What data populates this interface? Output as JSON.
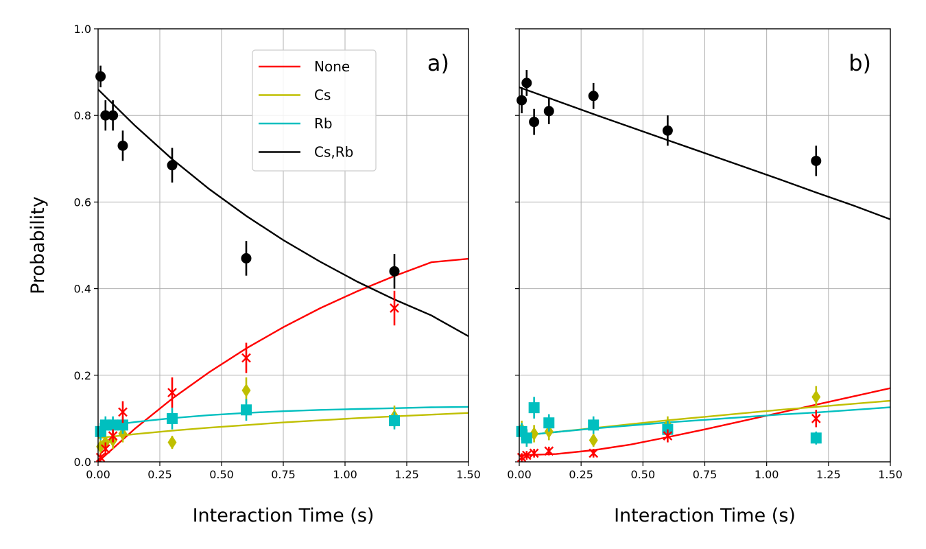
{
  "chart_data": [
    {
      "type": "scatter",
      "panel_label": "a)",
      "xlabel": "Interaction Time (s)",
      "ylabel": "Probability",
      "xlim": [
        0,
        1.5
      ],
      "ylim": [
        0,
        1.0
      ],
      "xticks": [
        0.0,
        0.25,
        0.5,
        0.75,
        1.0,
        1.25,
        1.5
      ],
      "xtick_labels": [
        "0.00",
        "0.25",
        "0.50",
        "0.75",
        "1.00",
        "1.25",
        "1.50"
      ],
      "yticks": [
        0.0,
        0.2,
        0.4,
        0.6,
        0.8,
        1.0
      ],
      "ytick_labels": [
        "0.0",
        "0.2",
        "0.4",
        "0.6",
        "0.8",
        "1.0"
      ],
      "grid": true,
      "legend": {
        "placement": "upper-center",
        "entries": [
          {
            "name": "None",
            "color": "#ff0000"
          },
          {
            "name": "Cs",
            "color": "#bfbf00"
          },
          {
            "name": "Rb",
            "color": "#00bfbf"
          },
          {
            "name": "Cs,Rb",
            "color": "#000000"
          }
        ]
      },
      "series": [
        {
          "name": "None",
          "color": "#ff0000",
          "marker": "x",
          "points": [
            {
              "x": 0.01,
              "y": 0.01,
              "err": 0.01
            },
            {
              "x": 0.03,
              "y": 0.03,
              "err": 0.015
            },
            {
              "x": 0.06,
              "y": 0.06,
              "err": 0.015
            },
            {
              "x": 0.1,
              "y": 0.115,
              "err": 0.025
            },
            {
              "x": 0.3,
              "y": 0.16,
              "err": 0.035
            },
            {
              "x": 0.6,
              "y": 0.24,
              "err": 0.035
            },
            {
              "x": 1.2,
              "y": 0.355,
              "err": 0.04
            }
          ],
          "fit": {
            "x": [
              0,
              0.15,
              0.3,
              0.45,
              0.6,
              0.75,
              0.9,
              1.05,
              1.2,
              1.35,
              1.5
            ],
            "y": [
              0.0,
              0.077,
              0.146,
              0.207,
              0.262,
              0.311,
              0.355,
              0.394,
              0.429,
              0.461,
              0.469
            ]
          }
        },
        {
          "name": "Cs",
          "color": "#bfbf00",
          "marker": "diamond",
          "points": [
            {
              "x": 0.01,
              "y": 0.035,
              "err": 0.02
            },
            {
              "x": 0.03,
              "y": 0.045,
              "err": 0.02
            },
            {
              "x": 0.06,
              "y": 0.05,
              "err": 0.02
            },
            {
              "x": 0.1,
              "y": 0.065,
              "err": 0.02
            },
            {
              "x": 0.3,
              "y": 0.045,
              "err": 0.015
            },
            {
              "x": 0.6,
              "y": 0.165,
              "err": 0.03
            },
            {
              "x": 1.2,
              "y": 0.105,
              "err": 0.025
            }
          ],
          "fit": {
            "x": [
              0,
              0.15,
              0.3,
              0.45,
              0.6,
              0.75,
              0.9,
              1.05,
              1.2,
              1.35,
              1.5
            ],
            "y": [
              0.055,
              0.064,
              0.072,
              0.079,
              0.085,
              0.091,
              0.096,
              0.101,
              0.105,
              0.109,
              0.113
            ]
          }
        },
        {
          "name": "Rb",
          "color": "#00bfbf",
          "marker": "square",
          "points": [
            {
              "x": 0.01,
              "y": 0.07,
              "err": 0.02
            },
            {
              "x": 0.03,
              "y": 0.085,
              "err": 0.02
            },
            {
              "x": 0.06,
              "y": 0.085,
              "err": 0.02
            },
            {
              "x": 0.1,
              "y": 0.085,
              "err": 0.02
            },
            {
              "x": 0.3,
              "y": 0.1,
              "err": 0.025
            },
            {
              "x": 0.6,
              "y": 0.12,
              "err": 0.025
            },
            {
              "x": 1.2,
              "y": 0.095,
              "err": 0.02
            }
          ],
          "fit": {
            "x": [
              0,
              0.15,
              0.3,
              0.45,
              0.6,
              0.75,
              0.9,
              1.05,
              1.2,
              1.35,
              1.5
            ],
            "y": [
              0.08,
              0.092,
              0.101,
              0.108,
              0.113,
              0.117,
              0.12,
              0.122,
              0.124,
              0.126,
              0.127
            ]
          }
        },
        {
          "name": "Cs,Rb",
          "color": "#000000",
          "marker": "circle",
          "points": [
            {
              "x": 0.01,
              "y": 0.89,
              "err": 0.025
            },
            {
              "x": 0.03,
              "y": 0.8,
              "err": 0.035
            },
            {
              "x": 0.06,
              "y": 0.8,
              "err": 0.035
            },
            {
              "x": 0.1,
              "y": 0.73,
              "err": 0.035
            },
            {
              "x": 0.3,
              "y": 0.685,
              "err": 0.04
            },
            {
              "x": 0.6,
              "y": 0.47,
              "err": 0.04
            },
            {
              "x": 1.2,
              "y": 0.44,
              "err": 0.04
            }
          ],
          "fit": {
            "x": [
              0,
              0.15,
              0.3,
              0.45,
              0.6,
              0.75,
              0.9,
              1.05,
              1.2,
              1.35,
              1.5
            ],
            "y": [
              0.86,
              0.776,
              0.699,
              0.63,
              0.568,
              0.512,
              0.462,
              0.416,
              0.375,
              0.338,
              0.29
            ]
          }
        }
      ]
    },
    {
      "type": "scatter",
      "panel_label": "b)",
      "xlabel": "Interaction Time (s)",
      "ylabel": "",
      "xlim": [
        0,
        1.5
      ],
      "ylim": [
        0,
        1.0
      ],
      "xticks": [
        0.0,
        0.25,
        0.5,
        0.75,
        1.0,
        1.25,
        1.5
      ],
      "xtick_labels": [
        "0.00",
        "0.25",
        "0.50",
        "0.75",
        "1.00",
        "1.25",
        "1.50"
      ],
      "yticks": [
        0.0,
        0.2,
        0.4,
        0.6,
        0.8,
        1.0
      ],
      "ytick_labels": [],
      "grid": true,
      "series": [
        {
          "name": "None",
          "color": "#ff0000",
          "marker": "x",
          "points": [
            {
              "x": 0.01,
              "y": 0.01,
              "err": 0.01
            },
            {
              "x": 0.03,
              "y": 0.015,
              "err": 0.01
            },
            {
              "x": 0.06,
              "y": 0.02,
              "err": 0.01
            },
            {
              "x": 0.12,
              "y": 0.025,
              "err": 0.01
            },
            {
              "x": 0.3,
              "y": 0.02,
              "err": 0.01
            },
            {
              "x": 0.6,
              "y": 0.06,
              "err": 0.015
            },
            {
              "x": 1.2,
              "y": 0.1,
              "err": 0.02
            }
          ],
          "fit": {
            "x": [
              0,
              0.15,
              0.3,
              0.45,
              0.6,
              0.75,
              0.9,
              1.05,
              1.2,
              1.35,
              1.5
            ],
            "y": [
              0.015,
              0.018,
              0.027,
              0.04,
              0.057,
              0.075,
              0.094,
              0.113,
              0.132,
              0.151,
              0.17
            ]
          }
        },
        {
          "name": "Cs",
          "color": "#bfbf00",
          "marker": "diamond",
          "points": [
            {
              "x": 0.01,
              "y": 0.075,
              "err": 0.02
            },
            {
              "x": 0.03,
              "y": 0.055,
              "err": 0.02
            },
            {
              "x": 0.06,
              "y": 0.065,
              "err": 0.02
            },
            {
              "x": 0.12,
              "y": 0.07,
              "err": 0.02
            },
            {
              "x": 0.3,
              "y": 0.05,
              "err": 0.015
            },
            {
              "x": 0.6,
              "y": 0.085,
              "err": 0.02
            },
            {
              "x": 1.2,
              "y": 0.15,
              "err": 0.025
            }
          ],
          "fit": {
            "x": [
              0,
              0.15,
              0.3,
              0.45,
              0.6,
              0.75,
              0.9,
              1.05,
              1.2,
              1.35,
              1.5
            ],
            "y": [
              0.06,
              0.069,
              0.078,
              0.087,
              0.096,
              0.104,
              0.112,
              0.12,
              0.127,
              0.134,
              0.141
            ]
          }
        },
        {
          "name": "Rb",
          "color": "#00bfbf",
          "marker": "square",
          "points": [
            {
              "x": 0.01,
              "y": 0.07,
              "err": 0.02
            },
            {
              "x": 0.03,
              "y": 0.055,
              "err": 0.02
            },
            {
              "x": 0.06,
              "y": 0.125,
              "err": 0.025
            },
            {
              "x": 0.12,
              "y": 0.09,
              "err": 0.02
            },
            {
              "x": 0.3,
              "y": 0.085,
              "err": 0.02
            },
            {
              "x": 0.6,
              "y": 0.075,
              "err": 0.02
            },
            {
              "x": 1.2,
              "y": 0.055,
              "err": 0.015
            }
          ],
          "fit": {
            "x": [
              0,
              0.15,
              0.3,
              0.45,
              0.6,
              0.75,
              0.9,
              1.05,
              1.2,
              1.35,
              1.5
            ],
            "y": [
              0.06,
              0.069,
              0.077,
              0.084,
              0.091,
              0.097,
              0.103,
              0.109,
              0.114,
              0.12,
              0.126
            ]
          }
        },
        {
          "name": "Cs,Rb",
          "color": "#000000",
          "marker": "circle",
          "points": [
            {
              "x": 0.01,
              "y": 0.835,
              "err": 0.03
            },
            {
              "x": 0.03,
              "y": 0.875,
              "err": 0.03
            },
            {
              "x": 0.06,
              "y": 0.785,
              "err": 0.03
            },
            {
              "x": 0.12,
              "y": 0.81,
              "err": 0.03
            },
            {
              "x": 0.3,
              "y": 0.845,
              "err": 0.03
            },
            {
              "x": 0.6,
              "y": 0.765,
              "err": 0.035
            },
            {
              "x": 1.2,
              "y": 0.695,
              "err": 0.035
            }
          ],
          "fit": {
            "x": [
              0,
              0.15,
              0.3,
              0.45,
              0.6,
              0.75,
              0.9,
              1.05,
              1.2,
              1.35,
              1.5
            ],
            "y": [
              0.865,
              0.834,
              0.803,
              0.773,
              0.743,
              0.713,
              0.683,
              0.653,
              0.622,
              0.592,
              0.56
            ]
          }
        }
      ]
    }
  ]
}
